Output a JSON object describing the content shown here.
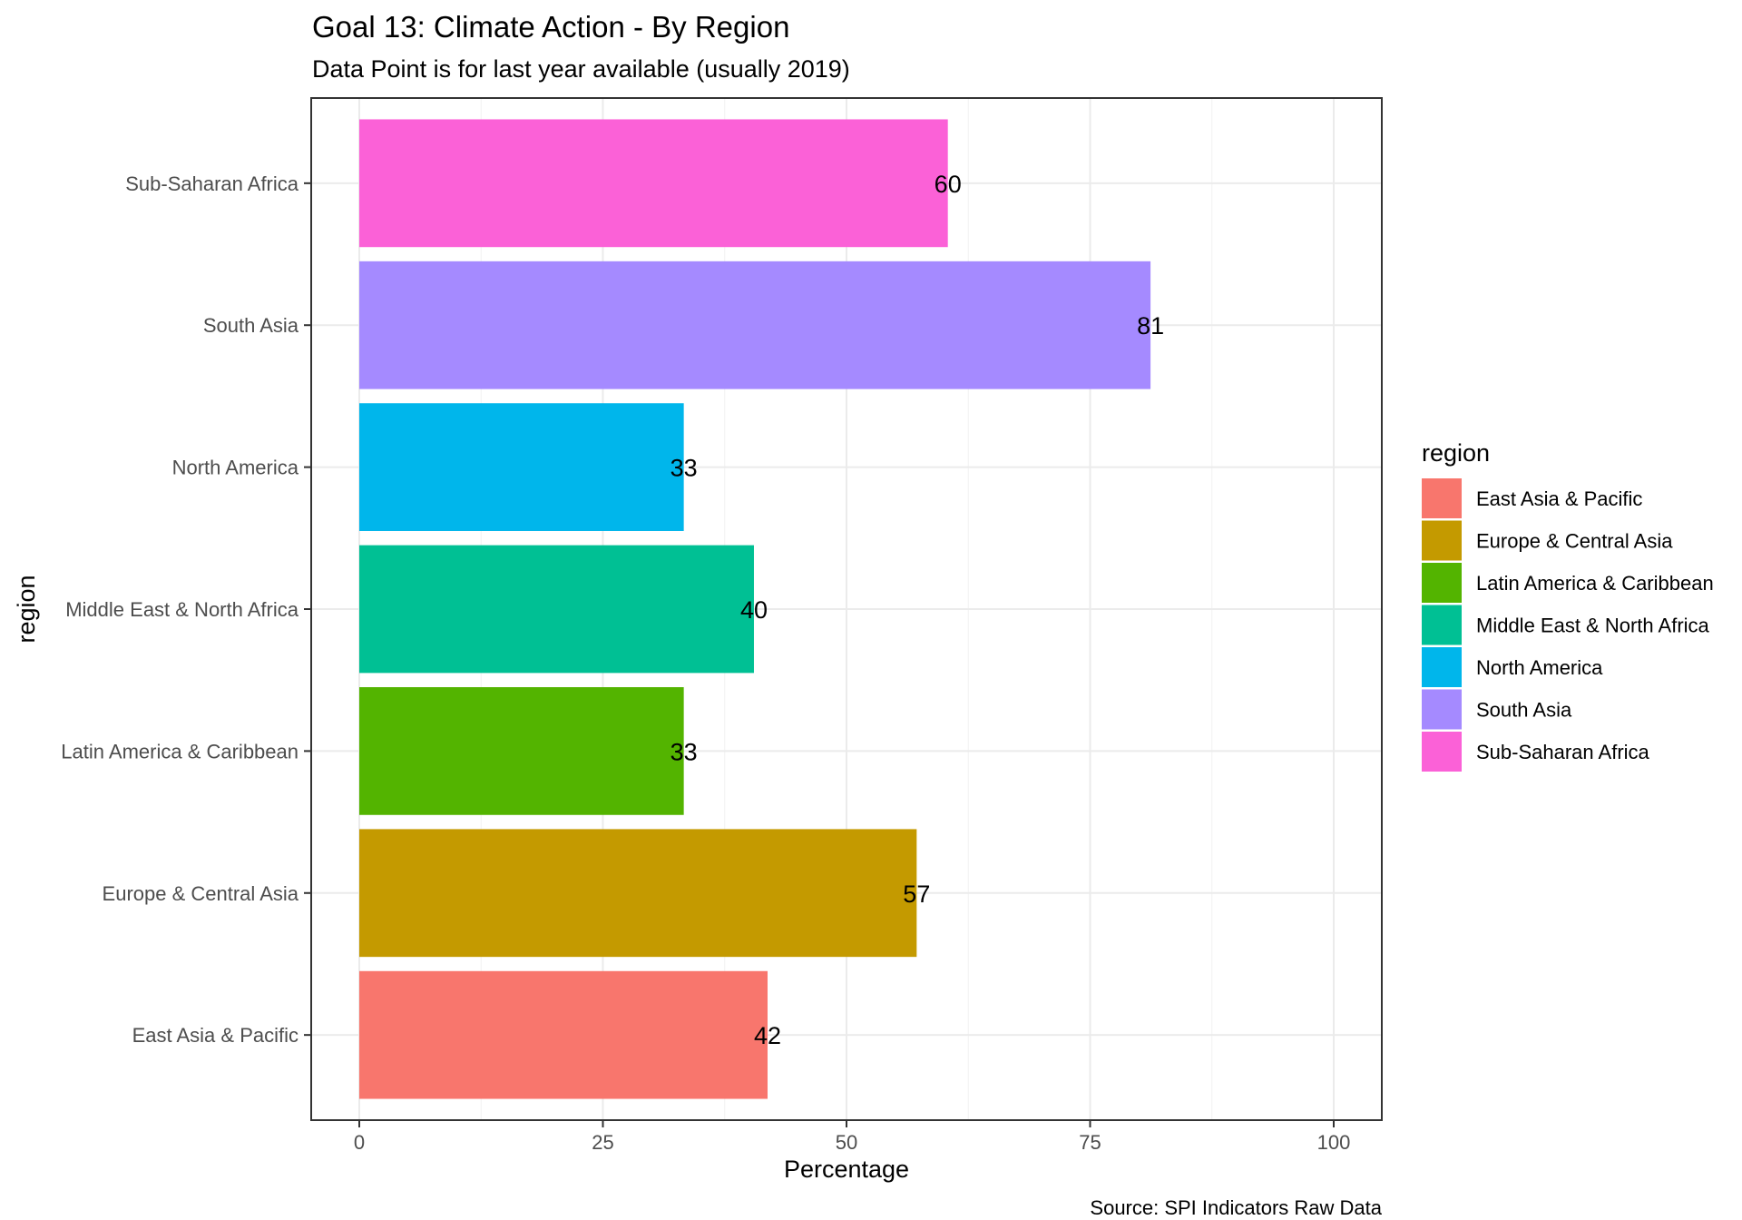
{
  "chart_data": {
    "type": "bar",
    "orientation": "horizontal",
    "title": "Goal 13: Climate Action - By Region",
    "subtitle": "Data Point is for last year available (usually 2019)",
    "xlabel": "Percentage",
    "ylabel": "region",
    "caption": "Source: SPI Indicators Raw Data",
    "xlim": [
      0,
      100
    ],
    "x_ticks": [
      0,
      25,
      50,
      75,
      100
    ],
    "grid": true,
    "legend_title": "region",
    "legend_position": "right",
    "categories": [
      "East Asia & Pacific",
      "Europe & Central Asia",
      "Latin America & Caribbean",
      "Middle East & North Africa",
      "North America",
      "South Asia",
      "Sub-Saharan Africa"
    ],
    "values": [
      41.9,
      57.2,
      33.3,
      40.5,
      33.3,
      81.2,
      60.4
    ],
    "value_labels": [
      "42",
      "57",
      "33",
      "40",
      "33",
      "81",
      "60"
    ],
    "colors": [
      "#F8766D",
      "#C49A00",
      "#53B400",
      "#00C094",
      "#00B6EB",
      "#A58AFF",
      "#FB61D7"
    ]
  }
}
